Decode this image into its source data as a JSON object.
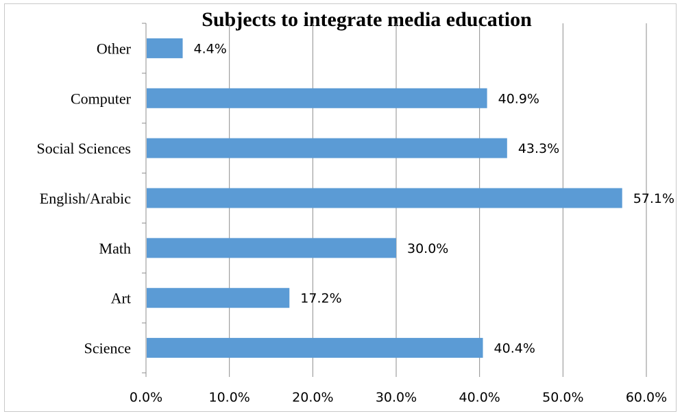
{
  "chart_data": {
    "type": "bar",
    "orientation": "horizontal",
    "title": "Subjects to integrate media education",
    "categories": [
      "Science",
      "Art",
      "Math",
      "English/Arabic",
      "Social Sciences",
      "Computer",
      "Other"
    ],
    "values": [
      40.4,
      17.2,
      30.0,
      57.1,
      43.3,
      40.9,
      4.4
    ],
    "data_labels": [
      "40.4%",
      "17.2%",
      "30.0%",
      "57.1%",
      "43.3%",
      "40.9%",
      "4.4%"
    ],
    "x_ticks": [
      "0.0%",
      "10.0%",
      "20.0%",
      "30.0%",
      "40.0%",
      "50.0%",
      "60.0%"
    ],
    "xlim": [
      0,
      60
    ],
    "grid": "vertical",
    "legend": "none",
    "bar_color": "#5b9bd5",
    "grid_color": "#8c8c8c"
  }
}
